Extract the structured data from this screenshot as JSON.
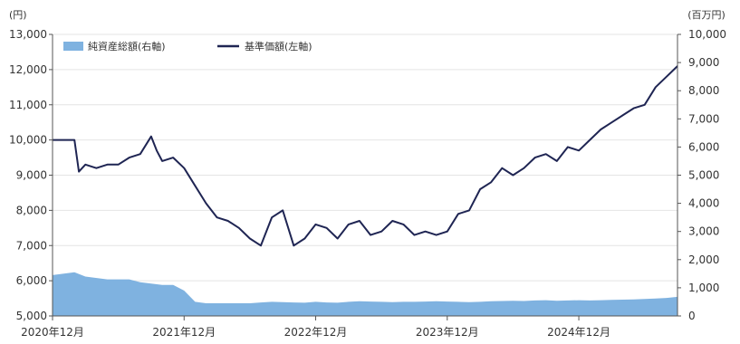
{
  "chart_data": {
    "type": "line",
    "left_unit": "(円)",
    "right_unit": "(百万円)",
    "legend": [
      {
        "key": "nav_total",
        "label": "純資産総額(右軸)",
        "color": "#7fb2e0",
        "type": "area"
      },
      {
        "key": "price",
        "label": "基準価額(左軸)",
        "color": "#1f2553",
        "type": "line"
      }
    ],
    "x_ticks": [
      "2020年12月",
      "2021年12月",
      "2022年12月",
      "2023年12月",
      "2024年12月"
    ],
    "y_left": {
      "min": 5000,
      "max": 13000,
      "ticks": [
        "5,000",
        "6,000",
        "7,000",
        "8,000",
        "9,000",
        "10,000",
        "11,000",
        "12,000",
        "13,000"
      ]
    },
    "y_right": {
      "min": 0,
      "max": 10000,
      "ticks": [
        "0",
        "1,000",
        "2,000",
        "3,000",
        "4,000",
        "5,000",
        "6,000",
        "7,000",
        "8,000",
        "9,000",
        "10,000"
      ]
    },
    "x_range_months": [
      0,
      57
    ],
    "series": [
      {
        "key": "price",
        "x": [
          0,
          1,
          2,
          2.4,
          3,
          4,
          5,
          6,
          7,
          8,
          9,
          9.5,
          10,
          11,
          12,
          13,
          14,
          15,
          16,
          17,
          18,
          19,
          20,
          21,
          22,
          23,
          24,
          25,
          26,
          27,
          28,
          29,
          30,
          31,
          32,
          33,
          34,
          35,
          36,
          37,
          38,
          39,
          40,
          41,
          42,
          43,
          44,
          45,
          46,
          47,
          48,
          49,
          50,
          51,
          52,
          53,
          54,
          55,
          56,
          57
        ],
        "values": [
          10000,
          10000,
          10000,
          9100,
          9300,
          9200,
          9300,
          9300,
          9500,
          9600,
          10100,
          9700,
          9400,
          9500,
          9200,
          8700,
          8200,
          7800,
          7700,
          7500,
          7200,
          7000,
          7800,
          8000,
          7000,
          7200,
          7600,
          7500,
          7200,
          7600,
          7700,
          7300,
          7400,
          7700,
          7600,
          7300,
          7400,
          7300,
          7400,
          7900,
          8000,
          8600,
          8800,
          9200,
          9000,
          9200,
          9500,
          9600,
          9400,
          9800,
          9700,
          10000,
          10300,
          10500,
          10700,
          10900,
          11000,
          11500,
          11800,
          12100
        ]
      },
      {
        "key": "nav_total",
        "x": [
          0,
          2,
          3,
          5,
          6,
          7,
          8,
          10,
          11,
          12,
          13,
          14,
          15,
          16,
          17,
          18,
          19,
          20,
          21,
          22,
          23,
          24,
          25,
          26,
          27,
          28,
          29,
          30,
          31,
          32,
          33,
          34,
          35,
          36,
          37,
          38,
          39,
          40,
          41,
          42,
          43,
          44,
          45,
          46,
          47,
          48,
          49,
          50,
          51,
          52,
          53,
          54,
          55,
          56,
          57
        ],
        "values": [
          1450,
          1550,
          1400,
          1300,
          1300,
          1300,
          1200,
          1100,
          1100,
          900,
          500,
          450,
          450,
          450,
          450,
          450,
          480,
          500,
          490,
          480,
          470,
          500,
          480,
          470,
          500,
          520,
          510,
          500,
          490,
          500,
          500,
          510,
          520,
          510,
          500,
          490,
          500,
          520,
          530,
          540,
          530,
          550,
          560,
          540,
          550,
          560,
          550,
          560,
          570,
          580,
          590,
          600,
          620,
          640,
          680
        ]
      }
    ]
  }
}
